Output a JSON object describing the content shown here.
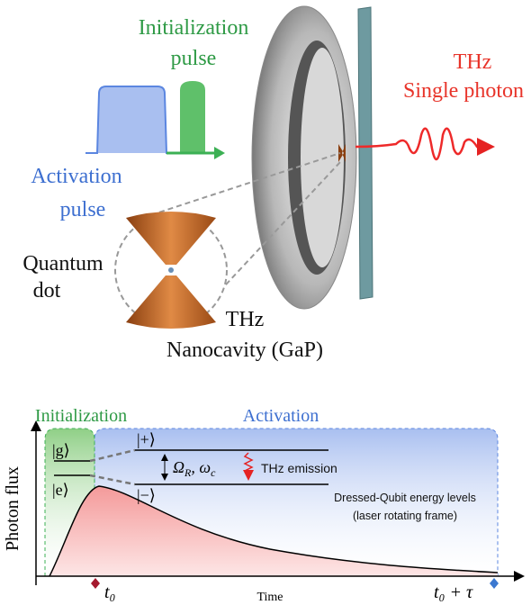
{
  "top": {
    "initialization_pulse": [
      "Initialization",
      "pulse"
    ],
    "activation_pulse": [
      "Activation",
      "pulse"
    ],
    "thz_photon": [
      "THz",
      "Single photon"
    ],
    "quantum_dot": [
      "Quantum",
      "dot"
    ],
    "cavity": [
      "THz",
      "Nanocavity (GaP)"
    ]
  },
  "bottom": {
    "phase_initialization": "Initialization",
    "phase_activation": "Activation",
    "state_g": "|g⟩",
    "state_e": "|e⟩",
    "state_plus": "|+⟩",
    "state_minus": "|−⟩",
    "coupling": [
      {
        "base": "Ω",
        "sub": "R"
      },
      {
        "base": ", ω",
        "sub": "c"
      }
    ],
    "emission": "THz emission",
    "levels_note": [
      "Dressed-Qubit energy levels",
      "(laser rotating frame)"
    ],
    "y_label": "Photon flux",
    "x_label": "Time",
    "t_start": "t₀",
    "t_end": "t₀ + τ"
  }
}
